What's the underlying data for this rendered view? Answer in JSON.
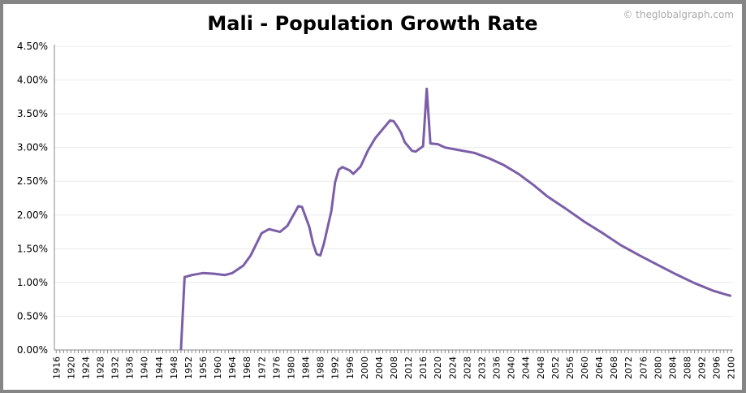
{
  "chart_data": {
    "type": "line",
    "title": "Mali - Population Growth Rate",
    "watermark": "© theglobalgraph.com",
    "xlabel": "",
    "ylabel": "",
    "xlim": [
      1916,
      2100
    ],
    "ylim": [
      0,
      4.5
    ],
    "y_tick_labels": [
      "0.00%",
      "0.50%",
      "1.00%",
      "1.50%",
      "2.00%",
      "2.50%",
      "3.00%",
      "3.50%",
      "4.00%",
      "4.50%"
    ],
    "x_tick_step": 4,
    "grid": true,
    "legend": "none",
    "line_color": "#7b5ea7",
    "series": [
      {
        "x": [
          1950,
          1951,
          1953,
          1956,
          1959,
          1962,
          1964,
          1967,
          1969,
          1972,
          1974,
          1977,
          1979,
          1982,
          1983,
          1985,
          1986,
          1987,
          1988,
          1989,
          1991,
          1992,
          1993,
          1994,
          1996,
          1997,
          1999,
          2001,
          2003,
          2005,
          2007,
          2008,
          2009,
          2010,
          2011,
          2013,
          2014,
          2016,
          2017,
          2018,
          2020,
          2022,
          2026,
          2030,
          2034,
          2038,
          2042,
          2046,
          2050,
          2055,
          2060,
          2065,
          2070,
          2075,
          2080,
          2085,
          2090,
          2095,
          2098,
          2100
        ],
        "y": [
          0,
          1.08,
          1.11,
          1.14,
          1.13,
          1.11,
          1.14,
          1.25,
          1.4,
          1.73,
          1.79,
          1.75,
          1.84,
          2.13,
          2.12,
          1.82,
          1.58,
          1.42,
          1.4,
          1.58,
          2.06,
          2.48,
          2.67,
          2.71,
          2.66,
          2.61,
          2.72,
          2.96,
          3.14,
          3.27,
          3.4,
          3.39,
          3.31,
          3.22,
          3.08,
          2.95,
          2.94,
          3.02,
          3.87,
          3.06,
          3.05,
          3.0,
          2.96,
          2.92,
          2.84,
          2.74,
          2.61,
          2.45,
          2.27,
          2.09,
          1.9,
          1.73,
          1.55,
          1.4,
          1.26,
          1.12,
          0.99,
          0.88,
          0.83,
          0.8
        ]
      }
    ]
  }
}
